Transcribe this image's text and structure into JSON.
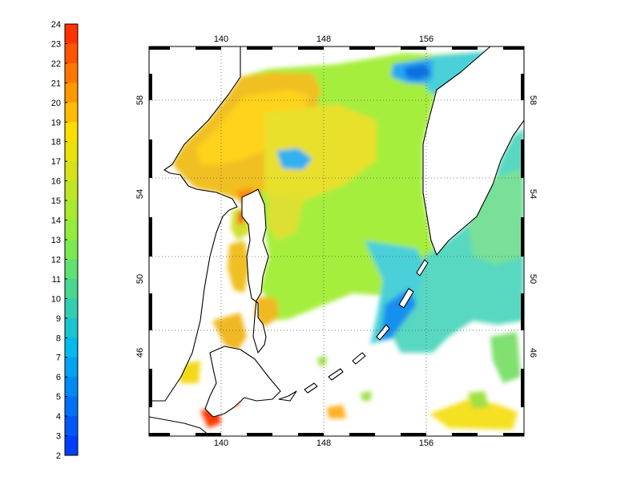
{
  "colorbar": {
    "ticks": [
      "24",
      "23",
      "22",
      "21",
      "20",
      "19",
      "18",
      "17",
      "16",
      "15",
      "14",
      "13",
      "12",
      "11",
      "10",
      "9",
      "8",
      "7",
      "6",
      "5",
      "4",
      "3",
      "2"
    ],
    "min": 2,
    "max": 24,
    "colors": {
      "low": "#0033ff",
      "mid_low": "#00bbee",
      "mid": "#88ee44",
      "mid_high": "#ffdd00",
      "high": "#ff2200"
    }
  },
  "map": {
    "top_lon_ticks": [
      "140",
      "148",
      "156"
    ],
    "bottom_lon_ticks": [
      "140",
      "148",
      "156"
    ],
    "left_lat_ticks": [
      "58",
      "54",
      "50",
      "46"
    ],
    "right_lat_ticks": [
      "58",
      "54",
      "50",
      "46"
    ],
    "frame_color": "#000000",
    "grid": "dotted",
    "missing_color": "#ffffff"
  }
}
